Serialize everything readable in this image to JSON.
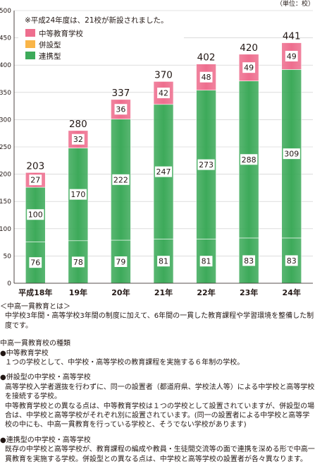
{
  "chart_data": {
    "type": "bar",
    "stacked": true,
    "unit_label": "（単位：校）",
    "annotation": "※平成24年度は、21校が新設されました。",
    "categories": [
      "平成18年",
      "19年",
      "20年",
      "21年",
      "22年",
      "23年",
      "24年"
    ],
    "series": [
      {
        "name": "連携型",
        "color": "#3daa5a",
        "values": [
          76,
          78,
          79,
          81,
          81,
          83,
          83
        ]
      },
      {
        "name": "併設型",
        "color": "#f9b548",
        "values": [
          100,
          170,
          222,
          247,
          273,
          288,
          309
        ]
      },
      {
        "name": "中等教育学校",
        "color": "#ee6e8e",
        "values": [
          27,
          32,
          36,
          42,
          48,
          49,
          49
        ]
      }
    ],
    "totals": [
      203,
      280,
      337,
      370,
      402,
      420,
      441
    ],
    "yticks": [
      0,
      50,
      100,
      150,
      200,
      250,
      300,
      350,
      400,
      450,
      500
    ],
    "ylim": [
      0,
      500
    ],
    "grid": true,
    "legend_position": "top-left"
  },
  "notes": {
    "heading": "＜中高一貫教育とは＞",
    "definition": "中学校3年間・高等学校3年間の制度に加えて、6年間の一貫した教育課程や学習環境を整備した制度です。",
    "types_heading": "中高一貫教育校の種類",
    "type1_title": "●中等教育学校",
    "type1_desc": "１つの学校として、中学校・高等学校の教育課程を実施する６年制の学校。",
    "type2_title": "●併設型の中学校・高等学校",
    "type2_l1": "高等学校入学者選抜を行わずに、同一の設置者（都道府県、学校法人等）による中学校と高等学校",
    "type2_l2": "を接続する学校。",
    "type2_l3": "中等教育学校との異なる点は、中等教育学校は１つの学校として設置されていますが、併設型の場",
    "type2_l4": "合は、中学校と高等学校がそれぞれ別に設置されています。(同一の設置者による中学校と高等学",
    "type2_l5": "校の中にも、中高一貫教育を行っている学校と、そうでない学校があります)",
    "type3_title": "●連携型の中学校・高等学校",
    "type3_l1": "既存の中学校と高等学校が、教育課程の編成や教員・生徒間交流等の面で連携を深める形で中高一",
    "type3_l2": "貫教育を実施する学校。併設型との異なる点は、中学校と高等学校の設置者が各々異なります。"
  }
}
